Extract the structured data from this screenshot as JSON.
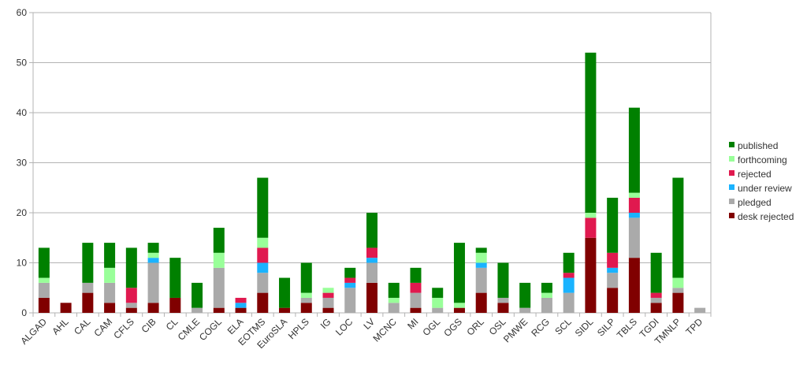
{
  "chart_data": {
    "type": "bar",
    "stacked": true,
    "ylim": [
      0,
      60
    ],
    "yticks": [
      0,
      10,
      20,
      30,
      40,
      50,
      60
    ],
    "grid": "horizontal",
    "legend_position": "right",
    "categories": [
      "ALGAD",
      "AHL",
      "CAL",
      "CAM",
      "CFLS",
      "CIB",
      "CL",
      "CMLE",
      "COGL",
      "ELA",
      "EOTMS",
      "EuroSLA",
      "HPLS",
      "IG",
      "LOC",
      "LV",
      "MCNC",
      "MI",
      "OGL",
      "OGS",
      "ORL",
      "OSL",
      "PMWE",
      "RCG",
      "SCL",
      "SIDL",
      "SILP",
      "TBLS",
      "TGDI",
      "TMNLP",
      "TPD"
    ],
    "series": [
      {
        "name": "desk rejected",
        "color": "#800000",
        "values": [
          3,
          2,
          4,
          2,
          1,
          2,
          3,
          0,
          1,
          1,
          4,
          1,
          2,
          1,
          0,
          6,
          0,
          1,
          0,
          1,
          4,
          2,
          0,
          0,
          0,
          15,
          5,
          11,
          2,
          4,
          0
        ]
      },
      {
        "name": "pledged",
        "color": "#aaaaaa",
        "values": [
          3,
          0,
          2,
          4,
          1,
          8,
          0,
          1,
          8,
          0,
          4,
          0,
          1,
          2,
          5,
          4,
          2,
          3,
          1,
          0,
          5,
          1,
          1,
          3,
          4,
          0,
          3,
          8,
          1,
          1,
          1
        ]
      },
      {
        "name": "under review",
        "color": "#1ab3ff",
        "values": [
          0,
          0,
          0,
          0,
          0,
          1,
          0,
          0,
          0,
          1,
          2,
          0,
          0,
          0,
          1,
          1,
          0,
          0,
          0,
          0,
          1,
          0,
          0,
          0,
          3,
          0,
          1,
          1,
          0,
          0,
          0
        ]
      },
      {
        "name": "rejected",
        "color": "#e0194f",
        "values": [
          0,
          0,
          0,
          0,
          3,
          0,
          0,
          0,
          0,
          1,
          3,
          0,
          0,
          1,
          1,
          2,
          0,
          2,
          0,
          0,
          0,
          0,
          0,
          0,
          1,
          4,
          3,
          3,
          1,
          0,
          0
        ]
      },
      {
        "name": "forthcoming",
        "color": "#99ff99",
        "values": [
          1,
          0,
          0,
          3,
          0,
          1,
          0,
          0,
          3,
          0,
          2,
          0,
          1,
          1,
          0,
          0,
          1,
          0,
          2,
          1,
          2,
          0,
          0,
          1,
          0,
          1,
          0,
          1,
          0,
          2,
          0
        ]
      },
      {
        "name": "published",
        "color": "#008000",
        "values": [
          6,
          0,
          8,
          5,
          8,
          2,
          8,
          5,
          5,
          0,
          12,
          6,
          6,
          0,
          2,
          7,
          3,
          3,
          2,
          12,
          1,
          7,
          5,
          2,
          4,
          32,
          11,
          17,
          8,
          20,
          0
        ]
      }
    ],
    "legend_order": [
      "published",
      "forthcoming",
      "rejected",
      "under review",
      "pledged",
      "desk rejected"
    ]
  }
}
